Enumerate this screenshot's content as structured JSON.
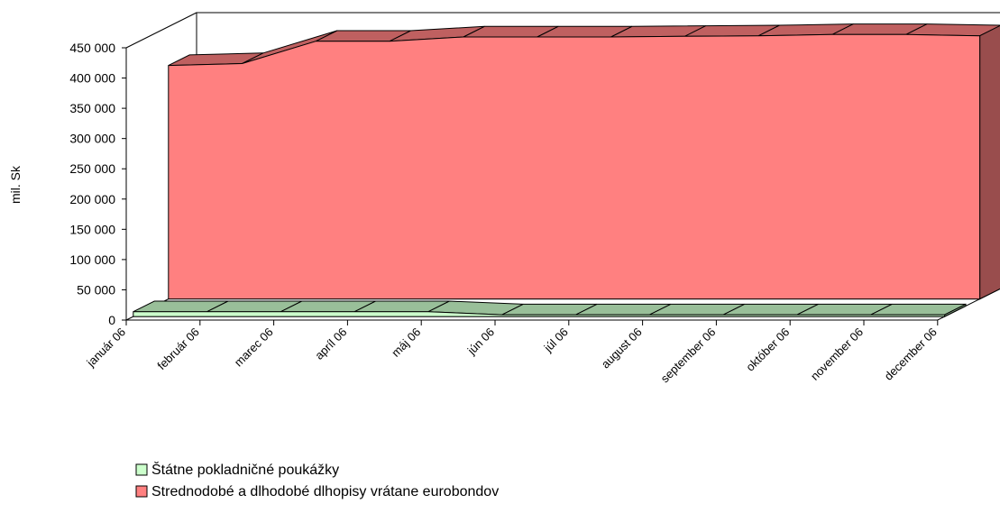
{
  "chart_data": {
    "type": "area",
    "y_label": "mil. Sk",
    "categories": [
      "január 06",
      "február 06",
      "marec 06",
      "apríl 06",
      "máj 06",
      "jún 06",
      "júl 06",
      "august 06",
      "september 06",
      "október 06",
      "november 06",
      "december 06"
    ],
    "series": [
      {
        "name": "Štátne pokladničné poukážky",
        "color": "#ccffcc",
        "values": [
          8000,
          8000,
          8000,
          8000,
          8000,
          3000,
          3000,
          3000,
          3000,
          3000,
          3000,
          3000
        ]
      },
      {
        "name": "Strednodobé a dlhodobé dlhopisy vrátane eurobondov",
        "color": "#ff8080",
        "values": [
          386000,
          389000,
          426000,
          426000,
          433000,
          433000,
          433000,
          434000,
          435000,
          437000,
          437000,
          435000
        ]
      }
    ],
    "ylim": [
      0,
      450000
    ],
    "yticks": [
      0,
      {
        "value": 50000,
        "label": "50 000"
      },
      {
        "value": 100000,
        "label": "100 000"
      },
      {
        "value": 150000,
        "label": "150 000"
      },
      {
        "value": 200000,
        "label": "200 000"
      },
      {
        "value": 250000,
        "label": "250 000"
      },
      {
        "value": 300000,
        "label": "300 000"
      },
      {
        "value": 350000,
        "label": "350 000"
      },
      {
        "value": 400000,
        "label": "400 000"
      },
      {
        "value": 450000,
        "label": "450 000"
      }
    ],
    "grid": false
  }
}
